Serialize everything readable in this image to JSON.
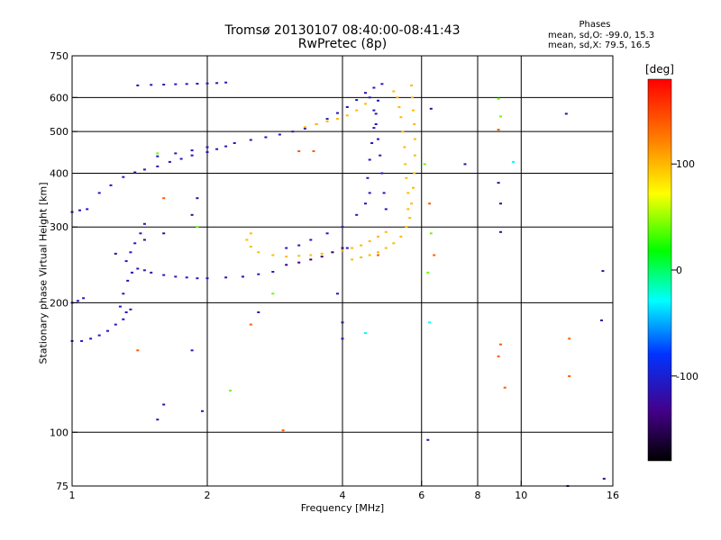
{
  "chart_data": {
    "type": "scatter",
    "title": "Tromsø 20130107 08:40:00-08:41:43",
    "subtitle": "RwPretec (8p)",
    "xlabel": "Frequency [MHz]",
    "ylabel": "Stationary phase Virtual Height [km]",
    "x_scale": "log",
    "y_scale": "log",
    "xlim": [
      1,
      16
    ],
    "ylim": [
      75,
      750
    ],
    "x_ticks": [
      1,
      2,
      4,
      6,
      8,
      10,
      16
    ],
    "x_ticklabels": [
      "1",
      "2",
      "4",
      "6",
      "8",
      "10",
      "16"
    ],
    "y_ticks": [
      75,
      100,
      200,
      300,
      400,
      500,
      600,
      750
    ],
    "y_ticklabels": [
      "75",
      "100",
      "200",
      "300",
      "400",
      "500",
      "600",
      "750"
    ],
    "grid": true,
    "stats": {
      "heading": "Phases",
      "line_o": "mean, sd,O: -99.0, 15.3",
      "line_x": "mean, sd,X:  79.5, 16.5"
    },
    "colorbar": {
      "unit": "[deg]",
      "ticks": [
        100,
        0,
        -100
      ],
      "ticklabels": [
        "100",
        "0",
        "-100"
      ],
      "range": [
        -180,
        180
      ],
      "placement": "right"
    },
    "series": [
      {
        "phase": -110,
        "points": [
          [
            1.0,
            200
          ],
          [
            1.03,
            202
          ],
          [
            1.06,
            205
          ],
          [
            1.0,
            163
          ],
          [
            1.05,
            163
          ],
          [
            1.1,
            165
          ],
          [
            1.15,
            168
          ],
          [
            1.2,
            172
          ],
          [
            1.25,
            178
          ],
          [
            1.3,
            183
          ],
          [
            1.32,
            190
          ],
          [
            1.35,
            193
          ],
          [
            1.28,
            196
          ],
          [
            1.3,
            210
          ],
          [
            1.33,
            225
          ],
          [
            1.36,
            235
          ],
          [
            1.4,
            240
          ],
          [
            1.45,
            238
          ],
          [
            1.5,
            235
          ],
          [
            1.6,
            232
          ],
          [
            1.7,
            230
          ],
          [
            1.8,
            229
          ],
          [
            1.9,
            228
          ],
          [
            2.0,
            228
          ],
          [
            2.2,
            229
          ],
          [
            2.4,
            230
          ],
          [
            2.6,
            233
          ],
          [
            2.8,
            236
          ],
          [
            1.32,
            250
          ],
          [
            1.35,
            262
          ],
          [
            1.38,
            275
          ],
          [
            1.42,
            290
          ],
          [
            1.45,
            305
          ],
          [
            1.0,
            325
          ],
          [
            1.04,
            328
          ],
          [
            1.08,
            330
          ],
          [
            1.15,
            360
          ],
          [
            1.22,
            375
          ],
          [
            1.3,
            392
          ],
          [
            1.38,
            402
          ],
          [
            1.45,
            408
          ],
          [
            1.55,
            415
          ],
          [
            1.65,
            425
          ],
          [
            1.75,
            432
          ],
          [
            1.85,
            440
          ],
          [
            2.0,
            448
          ],
          [
            2.1,
            455
          ],
          [
            2.2,
            462
          ],
          [
            1.55,
            438
          ],
          [
            1.7,
            445
          ],
          [
            1.85,
            452
          ],
          [
            2.0,
            460
          ],
          [
            2.3,
            470
          ],
          [
            2.5,
            478
          ],
          [
            2.7,
            485
          ],
          [
            2.9,
            492
          ],
          [
            3.1,
            500
          ],
          [
            3.3,
            508
          ],
          [
            3.5,
            520
          ],
          [
            3.7,
            535
          ],
          [
            3.9,
            552
          ],
          [
            4.1,
            570
          ],
          [
            4.3,
            592
          ],
          [
            4.5,
            615
          ],
          [
            4.7,
            632
          ],
          [
            4.9,
            645
          ],
          [
            1.4,
            640
          ],
          [
            1.5,
            642
          ],
          [
            1.6,
            643
          ],
          [
            1.7,
            644
          ],
          [
            1.8,
            645
          ],
          [
            1.9,
            646
          ],
          [
            2.0,
            647
          ],
          [
            2.1,
            648
          ],
          [
            2.2,
            650
          ],
          [
            4.6,
            600
          ],
          [
            4.7,
            560
          ],
          [
            4.75,
            520
          ],
          [
            4.8,
            480
          ],
          [
            4.85,
            440
          ],
          [
            4.9,
            400
          ],
          [
            4.95,
            360
          ],
          [
            5.0,
            330
          ],
          [
            4.3,
            320
          ],
          [
            4.0,
            300
          ],
          [
            3.7,
            290
          ],
          [
            3.4,
            280
          ],
          [
            3.2,
            272
          ],
          [
            3.0,
            268
          ],
          [
            4.5,
            340
          ],
          [
            4.6,
            360
          ],
          [
            4.55,
            390
          ],
          [
            4.6,
            430
          ],
          [
            4.65,
            470
          ],
          [
            4.7,
            510
          ],
          [
            4.75,
            550
          ],
          [
            4.8,
            590
          ],
          [
            6.2,
            96
          ],
          [
            1.85,
            155
          ],
          [
            1.95,
            112
          ],
          [
            1.55,
            107
          ],
          [
            2.6,
            190
          ],
          [
            4.1,
            268
          ],
          [
            3.9,
            210
          ],
          [
            4.0,
            165
          ]
        ]
      },
      {
        "phase": 100,
        "points": [
          [
            5.2,
            620
          ],
          [
            5.3,
            600
          ],
          [
            5.35,
            570
          ],
          [
            5.4,
            540
          ],
          [
            5.45,
            500
          ],
          [
            5.5,
            460
          ],
          [
            5.52,
            420
          ],
          [
            5.55,
            390
          ],
          [
            5.6,
            360
          ],
          [
            5.6,
            330
          ],
          [
            5.55,
            300
          ],
          [
            5.4,
            285
          ],
          [
            5.2,
            275
          ],
          [
            5.0,
            268
          ],
          [
            4.8,
            262
          ],
          [
            4.6,
            258
          ],
          [
            4.4,
            255
          ],
          [
            4.2,
            252
          ],
          [
            5.7,
            640
          ],
          [
            5.72,
            600
          ],
          [
            5.75,
            560
          ],
          [
            5.78,
            520
          ],
          [
            5.8,
            480
          ],
          [
            5.8,
            440
          ],
          [
            5.78,
            400
          ],
          [
            5.75,
            370
          ],
          [
            5.7,
            340
          ],
          [
            5.65,
            315
          ],
          [
            4.5,
            580
          ],
          [
            4.3,
            560
          ],
          [
            4.1,
            545
          ],
          [
            3.9,
            535
          ],
          [
            3.7,
            528
          ],
          [
            3.5,
            520
          ],
          [
            3.3,
            512
          ],
          [
            2.5,
            290
          ],
          [
            2.45,
            280
          ],
          [
            2.5,
            270
          ],
          [
            2.6,
            262
          ],
          [
            2.8,
            258
          ],
          [
            3.0,
            256
          ],
          [
            3.2,
            257
          ],
          [
            3.4,
            258
          ],
          [
            3.6,
            260
          ],
          [
            3.8,
            262
          ],
          [
            4.0,
            264
          ],
          [
            4.2,
            268
          ],
          [
            4.4,
            272
          ],
          [
            4.6,
            278
          ],
          [
            4.8,
            285
          ],
          [
            5.0,
            292
          ]
        ]
      },
      {
        "phase": -140,
        "points": [
          [
            3.0,
            245
          ],
          [
            3.2,
            248
          ],
          [
            3.4,
            252
          ],
          [
            3.6,
            256
          ],
          [
            3.8,
            262
          ],
          [
            4.0,
            268
          ]
        ]
      },
      {
        "phase": 40,
        "points": [
          [
            2.25,
            125
          ],
          [
            1.55,
            445
          ],
          [
            1.9,
            300
          ],
          [
            6.3,
            290
          ],
          [
            6.2,
            235
          ],
          [
            6.1,
            420
          ],
          [
            8.9,
            596
          ],
          [
            2.8,
            210
          ],
          [
            9.0,
            542
          ]
        ]
      },
      {
        "phase": 140,
        "points": [
          [
            8.9,
            505
          ],
          [
            1.4,
            155
          ],
          [
            2.95,
            101
          ],
          [
            6.25,
            340
          ],
          [
            3.45,
            450
          ],
          [
            12.8,
            135
          ],
          [
            12.8,
            165
          ],
          [
            9.2,
            127
          ],
          [
            8.9,
            150
          ],
          [
            6.4,
            258
          ],
          [
            2.5,
            178
          ],
          [
            4.8,
            258
          ],
          [
            3.2,
            450
          ],
          [
            1.6,
            350
          ],
          [
            9.0,
            160
          ]
        ]
      },
      {
        "phase": -30,
        "points": [
          [
            6.25,
            180
          ],
          [
            9.6,
            425
          ],
          [
            4.5,
            170
          ]
        ]
      },
      {
        "phase": -125,
        "points": [
          [
            6.3,
            565
          ],
          [
            7.5,
            420
          ],
          [
            8.9,
            380
          ],
          [
            9.0,
            340
          ],
          [
            9.0,
            292
          ],
          [
            12.6,
            550
          ],
          [
            15.2,
            237
          ],
          [
            15.1,
            182
          ],
          [
            12.7,
            75
          ],
          [
            15.3,
            78
          ],
          [
            1.6,
            116
          ],
          [
            4.0,
            180
          ],
          [
            1.25,
            260
          ],
          [
            1.6,
            290
          ],
          [
            1.85,
            320
          ],
          [
            1.9,
            350
          ],
          [
            1.45,
            280
          ]
        ]
      }
    ]
  }
}
